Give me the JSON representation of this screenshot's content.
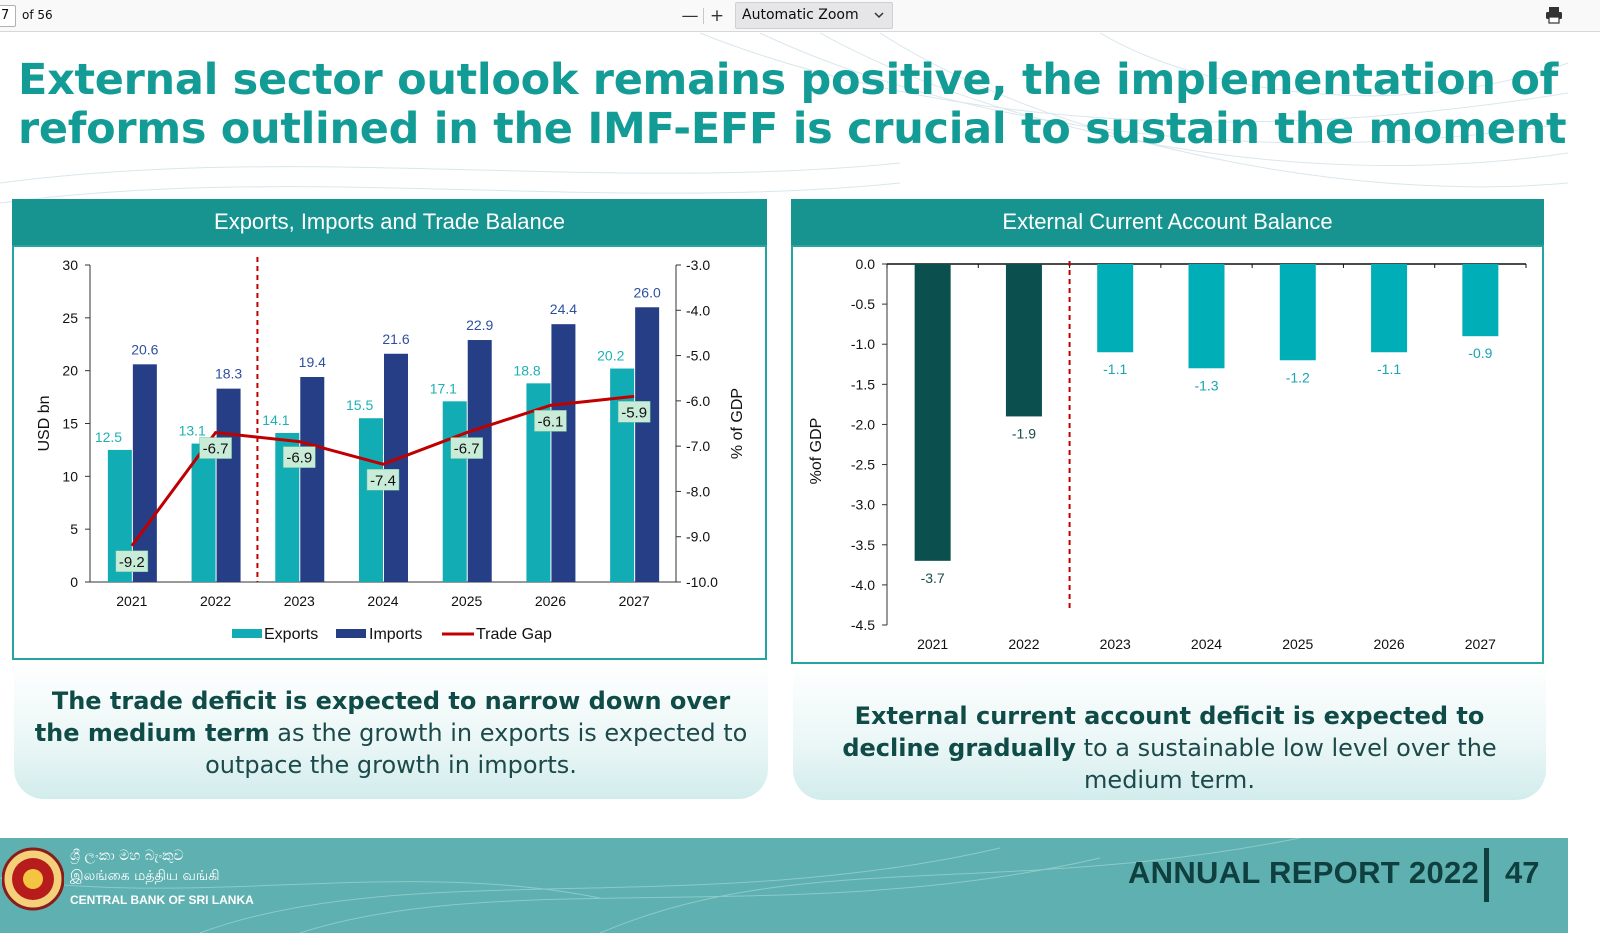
{
  "toolbar": {
    "page_number": "7",
    "page_count": "of 56",
    "zoom_out": "—",
    "zoom_in": "+",
    "zoom_level": "Automatic Zoom"
  },
  "slide": {
    "headline_line1": "External sector outlook remains positive, the implementation of",
    "headline_line2": "reforms outlined in the IMF-EFF is crucial to sustain the momentum..."
  },
  "left_panel": {
    "title": "Exports, Imports and Trade Balance",
    "summary_bold": "The trade deficit is expected to narrow down over the medium term",
    "summary_rest": " as the growth in exports is expected to outpace the growth in imports."
  },
  "right_panel": {
    "title": "External Current Account Balance",
    "summary_bold": "External current account deficit is expected to decline gradually",
    "summary_rest": " to a sustainable low level over the medium term."
  },
  "footer": {
    "sinhala": "ශ්‍රී ලංකා මහ බැංකුව",
    "tamil": "இலங்கை மத்திய வங்கி",
    "english": "CENTRAL BANK OF SRI LANKA",
    "report": "ANNUAL REPORT 2022",
    "page": "47"
  },
  "colors": {
    "teal_title": "#139c96",
    "exports": "#12acb4",
    "imports": "#263e86",
    "trade_gap": "#c00000",
    "cab_actual": "#0b4f4f",
    "cab_projected": "#00aeb8",
    "gap_label_bg": "#c9ecd9"
  },
  "chart_data": [
    {
      "type": "bar",
      "title": "Exports, Imports and Trade Balance",
      "categories": [
        "2021",
        "2022",
        "2023",
        "2024",
        "2025",
        "2026",
        "2027"
      ],
      "ylabel": "USD bn",
      "ylim": [
        0,
        30
      ],
      "yticks": [
        "0",
        "5",
        "10",
        "15",
        "20",
        "25",
        "30"
      ],
      "y2label": "% of GDP",
      "y2lim": [
        -10,
        -3
      ],
      "y2ticks": [
        "-10.0",
        "-9.0",
        "-8.0",
        "-7.0",
        "-6.0",
        "-5.0",
        "-4.0",
        "-3.0"
      ],
      "projection_divider_after": "2022",
      "legend_position": "bottom",
      "series": [
        {
          "name": "Exports",
          "kind": "bar",
          "axis": "left",
          "values": [
            12.5,
            13.1,
            14.1,
            15.5,
            17.1,
            18.8,
            20.2
          ],
          "labels": [
            "12.5",
            "13.1",
            "14.1",
            "15.5",
            "17.1",
            "18.8",
            "20.2"
          ]
        },
        {
          "name": "Imports",
          "kind": "bar",
          "axis": "left",
          "values": [
            20.6,
            18.3,
            19.4,
            21.6,
            22.9,
            24.4,
            26.0
          ],
          "labels": [
            "20.6",
            "18.3",
            "19.4",
            "21.6",
            "22.9",
            "24.4",
            "26.0"
          ]
        },
        {
          "name": "Trade Gap",
          "kind": "line",
          "axis": "right",
          "values": [
            -9.2,
            -6.7,
            -6.9,
            -7.4,
            -6.7,
            -6.1,
            -5.9
          ],
          "labels": [
            "-9.2",
            "-6.7",
            "-6.9",
            "-7.4",
            "-6.7",
            "-6.1",
            "-5.9"
          ]
        }
      ]
    },
    {
      "type": "bar",
      "title": "External Current Account Balance",
      "categories": [
        "2021",
        "2022",
        "2023",
        "2024",
        "2025",
        "2026",
        "2027"
      ],
      "ylabel": "%of GDP",
      "ylim": [
        -4.5,
        0
      ],
      "yticks": [
        "-4.5",
        "-4.0",
        "-3.5",
        "-3.0",
        "-2.5",
        "-2.0",
        "-1.5",
        "-1.0",
        "-0.5",
        "0.0"
      ],
      "projection_divider_after": "2022",
      "values": [
        -3.7,
        -1.9,
        -1.1,
        -1.3,
        -1.2,
        -1.1,
        -0.9
      ],
      "labels": [
        "-3.7",
        "-1.9",
        "-1.1",
        "-1.3",
        "-1.2",
        "-1.1",
        "-0.9"
      ],
      "projected_from": "2023"
    }
  ]
}
